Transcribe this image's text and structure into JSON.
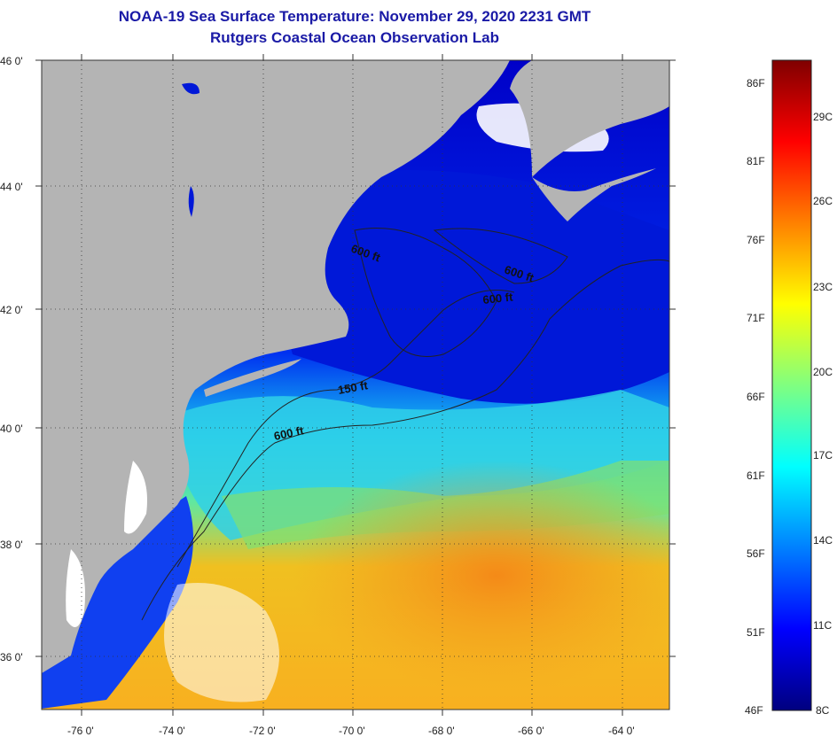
{
  "title": "NOAA-19 Sea Surface Temperature:  November 29, 2020 2231 GMT",
  "subtitle": "Rutgers Coastal Ocean Observation Lab",
  "map": {
    "longitude_range": [
      -77,
      -63
    ],
    "latitude_range": [
      35,
      46
    ],
    "lat_labels": [
      "46 0'",
      "44 0'",
      "42 0'",
      "40 0'",
      "38 0'",
      "36 0'"
    ],
    "lon_labels": [
      "-76 0'",
      "-74 0'",
      "-72 0'",
      "-70 0'",
      "-68 0'",
      "-66 0'",
      "-64 0'"
    ],
    "contour_labels": [
      "600 ft",
      "600 ft",
      "600 ft",
      "150 ft",
      "600 ft"
    ],
    "land_color": "#b4b4b4",
    "cloud_color": "#ffffff"
  },
  "colorbar": {
    "fahrenheit_labels": [
      "86F",
      "81F",
      "76F",
      "71F",
      "66F",
      "61F",
      "56F",
      "51F",
      "46F"
    ],
    "celsius_labels": [
      "29C",
      "26C",
      "23C",
      "20C",
      "17C",
      "14C",
      "11C",
      "8C"
    ],
    "range_f": [
      46,
      88
    ],
    "colors": [
      "#00007f",
      "#0000ff",
      "#0080ff",
      "#00ffff",
      "#80ff80",
      "#ffff00",
      "#ff8000",
      "#ff0000",
      "#7f0000"
    ]
  }
}
